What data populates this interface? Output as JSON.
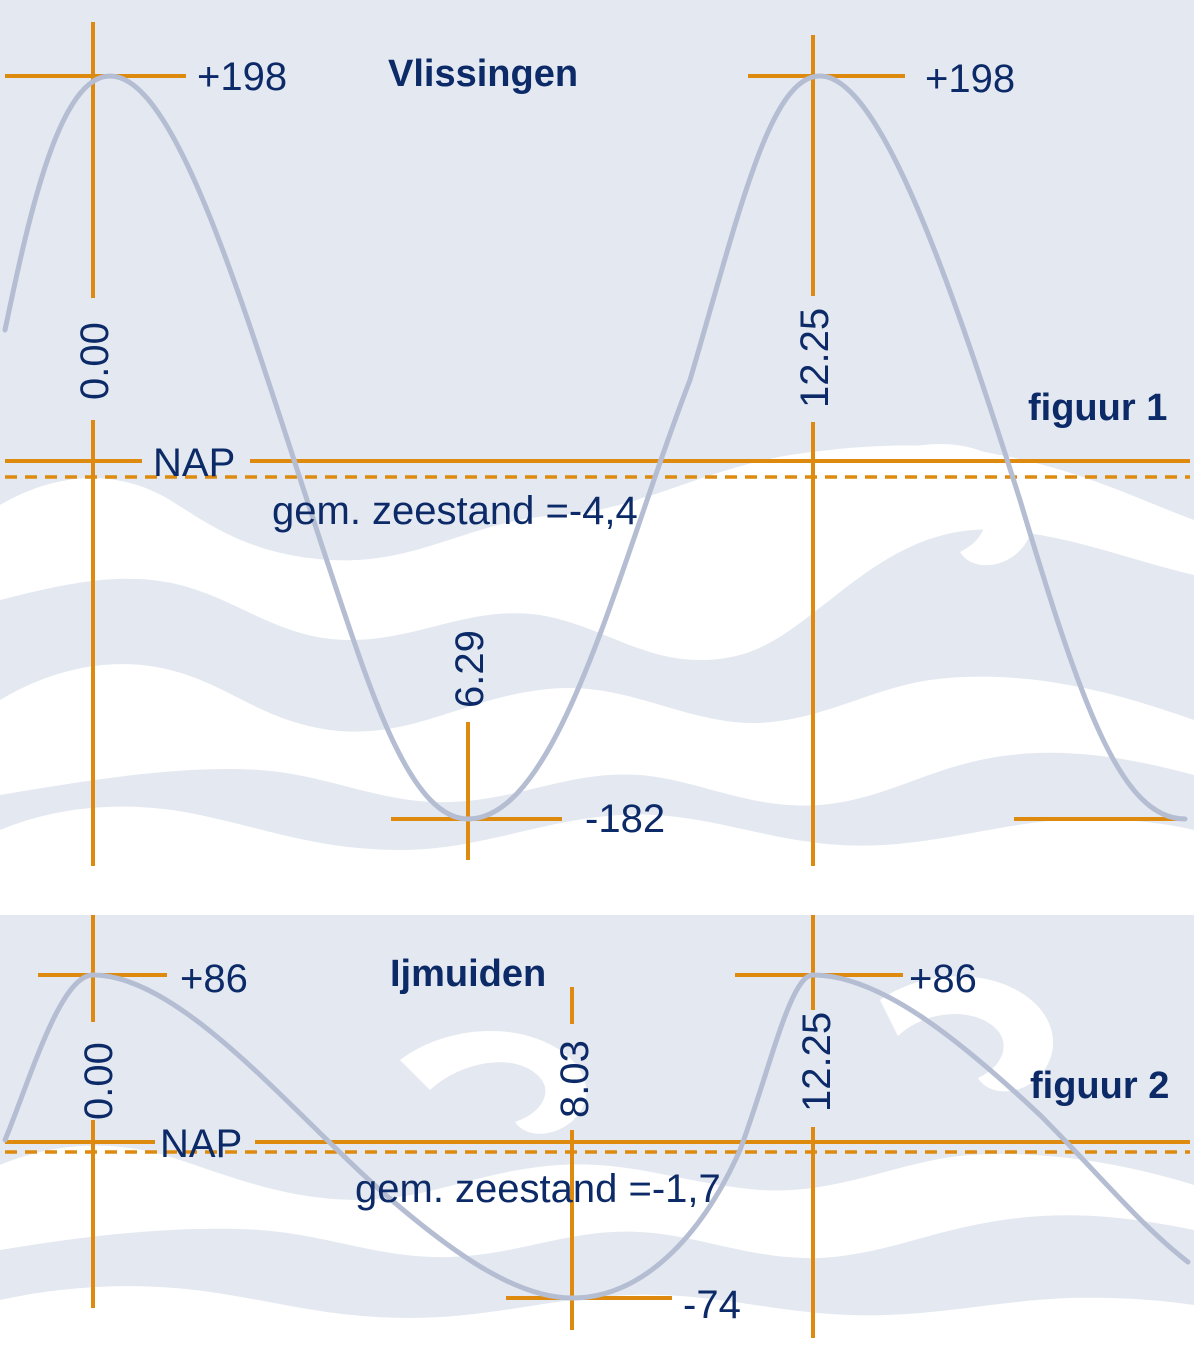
{
  "colors": {
    "background": "#e4e9f1",
    "guide": "#de8a0f",
    "curve": "#b4bdd2",
    "text": "#0c2a67"
  },
  "figures": [
    {
      "title": "Vlissingen",
      "figure_label": "figuur 1",
      "reference_label": "NAP",
      "mean_label": "gem. zeestand =-4,4",
      "labels": {
        "high1_level": "+198",
        "high2_level": "+198",
        "low_level": "-182",
        "high1_time": "0.00",
        "low_time": "6.29",
        "high2_time": "12.25"
      }
    },
    {
      "title": "Ijmuiden",
      "figure_label": "figuur 2",
      "reference_label": "NAP",
      "mean_label": "gem. zeestand =-1,7",
      "labels": {
        "high1_level": "+86",
        "high2_level": "+86",
        "low_level": "-74",
        "high1_time": "0.00",
        "low_time": "8.03",
        "high2_time": "12.25"
      }
    }
  ]
}
